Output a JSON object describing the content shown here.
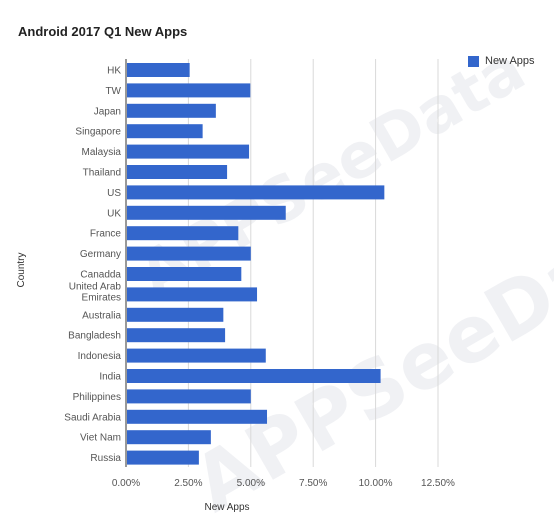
{
  "chart_data": {
    "type": "bar",
    "orientation": "horizontal",
    "title": "Android 2017 Q1 New Apps",
    "xlabel": "New Apps",
    "ylabel": "Country",
    "categories": [
      "HK",
      "TW",
      "Japan",
      "Singapore",
      "Malaysia",
      "Thailand",
      "US",
      "UK",
      "France",
      "Germany",
      "Canadda",
      "United Arab Emirates",
      "Australia",
      "Bangladesh",
      "Indonesia",
      "India",
      "Philippines",
      "Saudi Arabia",
      "Viet Nam",
      "Russia"
    ],
    "series": [
      {
        "name": "New Apps",
        "values": [
          2.55,
          4.98,
          3.6,
          3.07,
          4.93,
          4.05,
          10.35,
          6.4,
          4.5,
          5.0,
          4.62,
          5.25,
          3.9,
          3.97,
          5.6,
          10.2,
          5.0,
          5.65,
          3.4,
          2.92
        ]
      }
    ],
    "xlim": [
      0,
      12.5
    ],
    "xticks": [
      "0.00%",
      "2.50%",
      "5.00%",
      "7.50%",
      "10.00%",
      "12.50%"
    ],
    "xtick_values": [
      0,
      2.5,
      5,
      7.5,
      10,
      12.5
    ],
    "grid": true,
    "legend_position": "top-right",
    "color": "#3366cc",
    "watermark": "APPSeeData"
  }
}
